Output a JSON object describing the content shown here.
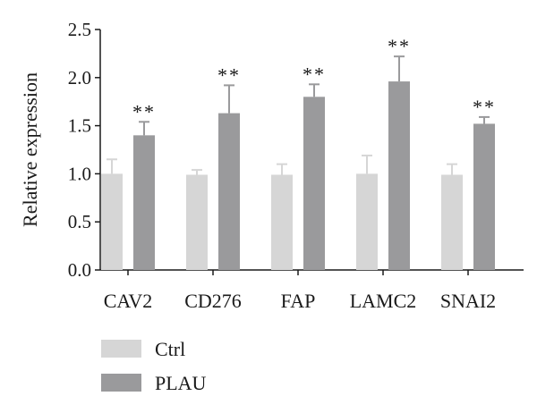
{
  "chart_data": {
    "type": "bar",
    "title": "",
    "xlabel": "",
    "ylabel": "Relative expression",
    "ylim": [
      0,
      2.5
    ],
    "yticks": [
      "0.0",
      "0.5",
      "1.0",
      "1.5",
      "2.0",
      "2.5"
    ],
    "grid": false,
    "legend_position": "bottom-left",
    "categories": [
      "CAV2",
      "CD276",
      "FAP",
      "LAMC2",
      "SNAI2"
    ],
    "series": [
      {
        "name": "Ctrl",
        "color": "#d6d6d6",
        "values": [
          1.0,
          0.99,
          0.99,
          1.0,
          0.99
        ],
        "errors": [
          0.15,
          0.05,
          0.11,
          0.19,
          0.11
        ]
      },
      {
        "name": "PLAU",
        "color": "#9a9a9c",
        "values": [
          1.4,
          1.63,
          1.8,
          1.96,
          1.52
        ],
        "errors": [
          0.14,
          0.29,
          0.13,
          0.26,
          0.07
        ]
      }
    ],
    "significance": [
      "**",
      "**",
      "**",
      "**",
      "**"
    ]
  }
}
